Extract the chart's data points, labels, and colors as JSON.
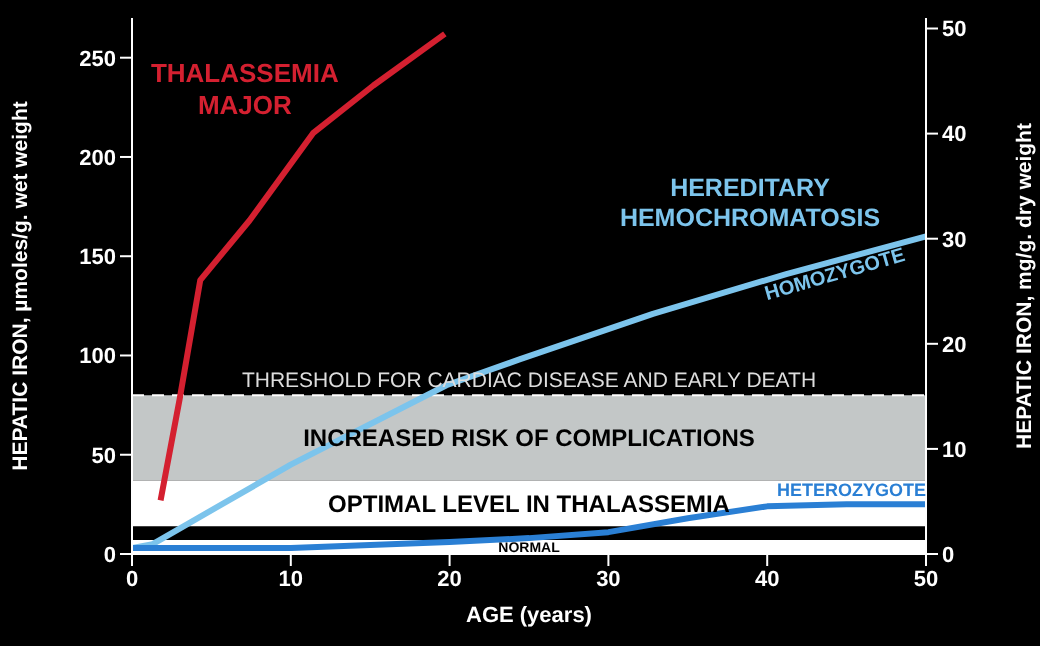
{
  "chart_data": {
    "type": "line",
    "xlabel": "AGE (years)",
    "ylabel": "HEPATIC IRON, µmoles/g. wet weight",
    "y2label": "HEPATIC IRON, mg/g. dry weight",
    "xlim": [
      0,
      50
    ],
    "xticks": [
      0,
      10,
      20,
      30,
      40,
      50
    ],
    "ylim": [
      0,
      270
    ],
    "yticks": [
      0,
      50,
      100,
      150,
      200,
      250
    ],
    "y2lim": [
      0,
      51
    ],
    "y2ticks": [
      0,
      10,
      20,
      30,
      40,
      50
    ],
    "marker": "none",
    "line_style": "solid",
    "series": [
      {
        "name": "THALASSEMIA MAJOR",
        "color": "#d42030",
        "x": [
          1.8,
          3.0,
          4.3,
          7.4,
          11.4,
          15.2,
          19.7
        ],
        "values": [
          27,
          78,
          138,
          168,
          212,
          236,
          262
        ]
      },
      {
        "name": "HOMOZYGOTE",
        "color": "#7cc4ec",
        "x": [
          0,
          1.3,
          10,
          19.8,
          24.4,
          32.8,
          41.2,
          50
        ],
        "values": [
          3,
          5,
          45,
          85,
          98,
          121,
          141,
          160
        ]
      },
      {
        "name": "HETEROZYGOTE",
        "color": "#2a7fd4",
        "x": [
          0,
          10,
          20,
          25,
          30,
          35,
          40,
          45,
          50
        ],
        "values": [
          3,
          3,
          6,
          8,
          11,
          18,
          24,
          25,
          25
        ]
      }
    ],
    "bands": [
      {
        "axis": "y",
        "from": 37,
        "to": 80,
        "label": "INCREASED RISK OF COMPLICATIONS",
        "color": "#c3c7c7"
      },
      {
        "axis": "y",
        "from": 14,
        "to": 37,
        "label": "OPTIMAL LEVEL IN THALASSEMIA",
        "color": "#ffffff"
      },
      {
        "axis": "y",
        "from": 0,
        "to": 7,
        "label": "NORMAL",
        "color": "#ffffff"
      }
    ],
    "ref_lines": [
      {
        "axis": "y",
        "value": 80,
        "label": "THRESHOLD FOR CARDIAC DISEASE AND EARLY DEATH",
        "color": "#ffffff",
        "line_style": "dashed"
      }
    ],
    "annotations": [
      "HEREDITARY HEMOCHROMATOSIS"
    ]
  }
}
